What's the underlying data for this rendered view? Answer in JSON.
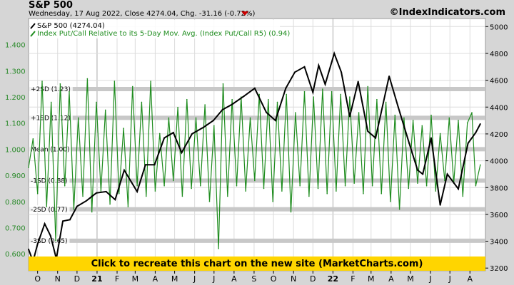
{
  "header": {
    "title": "S&P 500",
    "subtitle": "Wednesday, 17 Aug 2022, Close 4274.04, Chg. -31.16 (-0.72%)",
    "brand": "©IndexIndicators.com"
  },
  "banner": {
    "text": "Click to recreate this chart on the new site (MarketCharts.com)"
  },
  "colors": {
    "sp500": "#000000",
    "ratio": "#1e8c1e",
    "left_axis": "#2a8a2a",
    "right_axis": "#000000",
    "band": "#c8c8c8",
    "banner": "#ffd500",
    "plot_bg": "#ffffff",
    "grid": "#dcdcdc"
  },
  "chart_data": {
    "type": "line",
    "title": "S&P 500",
    "legend": [
      "S&P 500 (4274.04)",
      "Index Put/Call Relative to its 5-Day Mov. Avg. (Index Put/Call R5) (0.94)"
    ],
    "legend_position": "top-left",
    "x_ticks": [
      {
        "label": "O",
        "date": "2020-10-01",
        "bold": false
      },
      {
        "label": "N",
        "date": "2020-11-01",
        "bold": false
      },
      {
        "label": "D",
        "date": "2020-12-01",
        "bold": false
      },
      {
        "label": "21",
        "date": "2021-01-01",
        "bold": true
      },
      {
        "label": "F",
        "date": "2021-02-01",
        "bold": false
      },
      {
        "label": "M",
        "date": "2021-03-01",
        "bold": false
      },
      {
        "label": "A",
        "date": "2021-04-01",
        "bold": false
      },
      {
        "label": "M",
        "date": "2021-05-01",
        "bold": false
      },
      {
        "label": "J",
        "date": "2021-06-01",
        "bold": false
      },
      {
        "label": "J",
        "date": "2021-07-01",
        "bold": false
      },
      {
        "label": "A",
        "date": "2021-08-01",
        "bold": false
      },
      {
        "label": "S",
        "date": "2021-09-01",
        "bold": false
      },
      {
        "label": "O",
        "date": "2021-10-01",
        "bold": false
      },
      {
        "label": "N",
        "date": "2021-11-01",
        "bold": false
      },
      {
        "label": "D",
        "date": "2021-12-01",
        "bold": false
      },
      {
        "label": "22",
        "date": "2022-01-01",
        "bold": true
      },
      {
        "label": "F",
        "date": "2022-02-01",
        "bold": false
      },
      {
        "label": "M",
        "date": "2022-03-01",
        "bold": false
      },
      {
        "label": "A",
        "date": "2022-04-01",
        "bold": false
      },
      {
        "label": "M",
        "date": "2022-05-01",
        "bold": false
      },
      {
        "label": "J",
        "date": "2022-06-01",
        "bold": false
      },
      {
        "label": "J",
        "date": "2022-07-01",
        "bold": false
      },
      {
        "label": "A",
        "date": "2022-08-01",
        "bold": false
      }
    ],
    "x_range": [
      "2020-09-17",
      "2022-08-25"
    ],
    "left_axis": {
      "ticks": [
        "0.600",
        "0.700",
        "0.800",
        "0.900",
        "1.000",
        "1.100",
        "1.200",
        "1.300",
        "1.400"
      ],
      "range": [
        0.535,
        1.5
      ]
    },
    "right_axis": {
      "ticks": [
        "3200",
        "3400",
        "3600",
        "3800",
        "4000",
        "4200",
        "4400",
        "4600",
        "4800",
        "5000"
      ],
      "range": [
        3180,
        5060
      ]
    },
    "bands": [
      {
        "label": "+2SD (1.23)",
        "value": 1.23
      },
      {
        "label": "+1SD (1.12)",
        "value": 1.12
      },
      {
        "label": "Mean (1.00)",
        "value": 1.0
      },
      {
        "label": "-1SD (0.88)",
        "value": 0.88
      },
      {
        "label": "-2SD (0.77)",
        "value": 0.77
      },
      {
        "label": "-3SD (0.65)",
        "value": 0.65
      }
    ],
    "series": [
      {
        "name": "S&P 500 (4274.04)",
        "axis": "right",
        "points": [
          [
            "2020-09-17",
            3340
          ],
          [
            "2020-09-24",
            3250
          ],
          [
            "2020-10-01",
            3380
          ],
          [
            "2020-10-12",
            3530
          ],
          [
            "2020-10-21",
            3440
          ],
          [
            "2020-10-30",
            3270
          ],
          [
            "2020-11-09",
            3550
          ],
          [
            "2020-11-20",
            3560
          ],
          [
            "2020-12-01",
            3660
          ],
          [
            "2020-12-15",
            3700
          ],
          [
            "2020-12-31",
            3760
          ],
          [
            "2021-01-15",
            3770
          ],
          [
            "2021-01-29",
            3710
          ],
          [
            "2021-02-12",
            3930
          ],
          [
            "2021-03-04",
            3770
          ],
          [
            "2021-03-17",
            3970
          ],
          [
            "2021-03-31",
            3970
          ],
          [
            "2021-04-15",
            4170
          ],
          [
            "2021-04-29",
            4210
          ],
          [
            "2021-05-12",
            4060
          ],
          [
            "2021-05-28",
            4200
          ],
          [
            "2021-06-15",
            4250
          ],
          [
            "2021-06-30",
            4300
          ],
          [
            "2021-07-14",
            4380
          ],
          [
            "2021-07-29",
            4420
          ],
          [
            "2021-08-16",
            4480
          ],
          [
            "2021-09-02",
            4540
          ],
          [
            "2021-09-20",
            4360
          ],
          [
            "2021-10-04",
            4300
          ],
          [
            "2021-10-20",
            4540
          ],
          [
            "2021-11-03",
            4660
          ],
          [
            "2021-11-18",
            4700
          ],
          [
            "2021-12-01",
            4510
          ],
          [
            "2021-12-10",
            4710
          ],
          [
            "2021-12-20",
            4570
          ],
          [
            "2022-01-03",
            4800
          ],
          [
            "2022-01-14",
            4660
          ],
          [
            "2022-01-27",
            4330
          ],
          [
            "2022-02-09",
            4590
          ],
          [
            "2022-02-24",
            4220
          ],
          [
            "2022-03-08",
            4170
          ],
          [
            "2022-03-29",
            4630
          ],
          [
            "2022-04-12",
            4400
          ],
          [
            "2022-04-29",
            4130
          ],
          [
            "2022-05-12",
            3930
          ],
          [
            "2022-05-20",
            3900
          ],
          [
            "2022-06-02",
            4170
          ],
          [
            "2022-06-16",
            3670
          ],
          [
            "2022-06-27",
            3900
          ],
          [
            "2022-07-14",
            3790
          ],
          [
            "2022-07-29",
            4130
          ],
          [
            "2022-08-10",
            4210
          ],
          [
            "2022-08-17",
            4274.04
          ]
        ]
      },
      {
        "name": "Index Put/Call Relative to its 5-Day Mov. Avg. (Index Put/Call R5) (0.94)",
        "axis": "left",
        "points": [
          [
            "2020-09-17",
            0.93
          ],
          [
            "2020-09-24",
            1.04
          ],
          [
            "2020-10-01",
            0.83
          ],
          [
            "2020-10-08",
            1.26
          ],
          [
            "2020-10-15",
            0.78
          ],
          [
            "2020-10-22",
            1.18
          ],
          [
            "2020-10-29",
            0.65
          ],
          [
            "2020-11-05",
            1.25
          ],
          [
            "2020-11-12",
            0.86
          ],
          [
            "2020-11-19",
            1.22
          ],
          [
            "2020-11-26",
            0.77
          ],
          [
            "2020-12-03",
            1.12
          ],
          [
            "2020-12-10",
            0.82
          ],
          [
            "2020-12-17",
            1.27
          ],
          [
            "2020-12-24",
            0.76
          ],
          [
            "2020-12-31",
            1.18
          ],
          [
            "2021-01-07",
            0.84
          ],
          [
            "2021-01-14",
            1.15
          ],
          [
            "2021-01-21",
            0.79
          ],
          [
            "2021-01-28",
            1.26
          ],
          [
            "2021-02-04",
            0.83
          ],
          [
            "2021-02-11",
            1.08
          ],
          [
            "2021-02-18",
            0.78
          ],
          [
            "2021-02-25",
            1.24
          ],
          [
            "2021-03-04",
            0.86
          ],
          [
            "2021-03-11",
            1.18
          ],
          [
            "2021-03-18",
            0.82
          ],
          [
            "2021-03-25",
            1.26
          ],
          [
            "2021-04-01",
            0.84
          ],
          [
            "2021-04-08",
            1.06
          ],
          [
            "2021-04-15",
            0.86
          ],
          [
            "2021-04-22",
            1.12
          ],
          [
            "2021-04-29",
            0.88
          ],
          [
            "2021-05-06",
            1.16
          ],
          [
            "2021-05-13",
            0.82
          ],
          [
            "2021-05-20",
            1.19
          ],
          [
            "2021-05-27",
            0.85
          ],
          [
            "2021-06-03",
            1.12
          ],
          [
            "2021-06-10",
            0.86
          ],
          [
            "2021-06-17",
            1.17
          ],
          [
            "2021-06-24",
            0.8
          ],
          [
            "2021-07-01",
            1.09
          ],
          [
            "2021-07-08",
            0.62
          ],
          [
            "2021-07-15",
            1.25
          ],
          [
            "2021-07-22",
            0.82
          ],
          [
            "2021-07-29",
            1.19
          ],
          [
            "2021-08-05",
            0.86
          ],
          [
            "2021-08-12",
            1.2
          ],
          [
            "2021-08-19",
            0.84
          ],
          [
            "2021-08-26",
            1.12
          ],
          [
            "2021-09-02",
            0.88
          ],
          [
            "2021-09-09",
            1.21
          ],
          [
            "2021-09-16",
            0.85
          ],
          [
            "2021-09-23",
            1.19
          ],
          [
            "2021-09-30",
            0.8
          ],
          [
            "2021-10-07",
            1.18
          ],
          [
            "2021-10-14",
            0.84
          ],
          [
            "2021-10-21",
            1.21
          ],
          [
            "2021-10-28",
            0.76
          ],
          [
            "2021-11-04",
            1.14
          ],
          [
            "2021-11-11",
            0.86
          ],
          [
            "2021-11-18",
            1.22
          ],
          [
            "2021-11-25",
            0.82
          ],
          [
            "2021-12-02",
            1.2
          ],
          [
            "2021-12-09",
            0.85
          ],
          [
            "2021-12-16",
            1.23
          ],
          [
            "2021-12-23",
            0.83
          ],
          [
            "2021-12-30",
            1.22
          ],
          [
            "2022-01-06",
            0.84
          ],
          [
            "2022-01-13",
            1.21
          ],
          [
            "2022-01-20",
            0.86
          ],
          [
            "2022-01-27",
            1.2
          ],
          [
            "2022-02-03",
            0.87
          ],
          [
            "2022-02-10",
            1.14
          ],
          [
            "2022-02-17",
            0.83
          ],
          [
            "2022-02-24",
            1.24
          ],
          [
            "2022-03-03",
            0.86
          ],
          [
            "2022-03-10",
            1.19
          ],
          [
            "2022-03-17",
            0.83
          ],
          [
            "2022-03-24",
            1.18
          ],
          [
            "2022-03-31",
            0.8
          ],
          [
            "2022-04-07",
            1.13
          ],
          [
            "2022-04-14",
            0.77
          ],
          [
            "2022-04-21",
            1.12
          ],
          [
            "2022-04-28",
            0.85
          ],
          [
            "2022-05-05",
            1.11
          ],
          [
            "2022-05-12",
            0.87
          ],
          [
            "2022-05-19",
            1.09
          ],
          [
            "2022-05-26",
            0.86
          ],
          [
            "2022-06-02",
            1.13
          ],
          [
            "2022-06-09",
            0.84
          ],
          [
            "2022-06-16",
            1.06
          ],
          [
            "2022-06-23",
            0.88
          ],
          [
            "2022-06-30",
            1.12
          ],
          [
            "2022-07-07",
            0.87
          ],
          [
            "2022-07-14",
            1.11
          ],
          [
            "2022-07-21",
            0.82
          ],
          [
            "2022-07-28",
            1.1
          ],
          [
            "2022-08-04",
            1.14
          ],
          [
            "2022-08-10",
            0.86
          ],
          [
            "2022-08-17",
            0.94
          ]
        ]
      }
    ]
  }
}
